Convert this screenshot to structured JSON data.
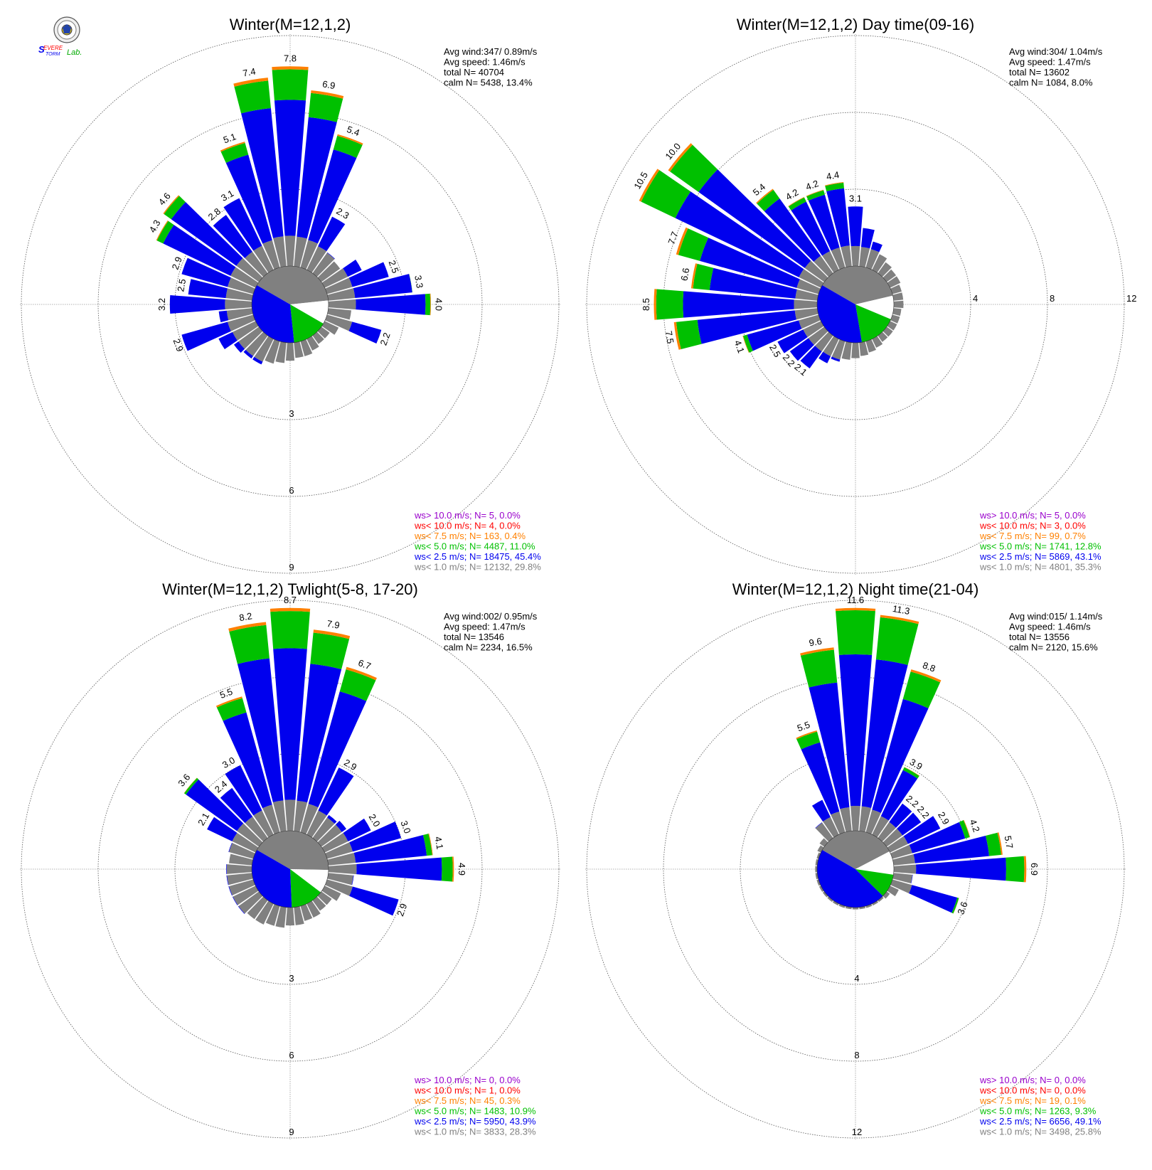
{
  "logo": {
    "text_top": "Severe",
    "text_bottom": "Storm",
    "text_lab": "Lab."
  },
  "colors": {
    "gray": "#808080",
    "blue": "#0000ee",
    "green": "#00c000",
    "orange": "#ff8000",
    "red": "#ff0000",
    "purple": "#9900cc",
    "grid": "#999999"
  },
  "chart_data": [
    {
      "type": "wind-rose",
      "title": "Winter(M=12,1,2)",
      "rings": [
        3,
        6,
        9
      ],
      "ring_labels": [
        "3",
        "6",
        "9"
      ],
      "stats": [
        "Avg wind:347/ 0.89m/s",
        "Avg speed: 1.46m/s",
        "total N=      40704",
        "calm N=   5438,  13.4%"
      ],
      "calm_pct": 13.4,
      "sector_shares": {
        "gray": 0.4,
        "blue": 0.35,
        "green": 0.15
      },
      "spokes": [
        {
          "deg": 0,
          "total": 7.8,
          "label": "7.8"
        },
        {
          "deg": 10,
          "total": 6.9,
          "label": "6.9"
        },
        {
          "deg": 20,
          "total": 5.4,
          "label": "5.4"
        },
        {
          "deg": 30,
          "total": 2.3,
          "label": "2.3"
        },
        {
          "deg": 40,
          "total": 1.0
        },
        {
          "deg": 50,
          "total": 0.9
        },
        {
          "deg": 60,
          "total": 1.6
        },
        {
          "deg": 70,
          "total": 2.5,
          "label": "2.5"
        },
        {
          "deg": 80,
          "total": 3.3,
          "label": "3.3"
        },
        {
          "deg": 90,
          "total": 4.0,
          "label": "4.0"
        },
        {
          "deg": 100,
          "total": 0.9
        },
        {
          "deg": 110,
          "total": 2.2,
          "label": "2.2"
        },
        {
          "deg": 120,
          "total": 0.6
        },
        {
          "deg": 130,
          "total": 0.4
        },
        {
          "deg": 140,
          "total": 0.4
        },
        {
          "deg": 150,
          "total": 0.5
        },
        {
          "deg": 160,
          "total": 0.6
        },
        {
          "deg": 170,
          "total": 0.6
        },
        {
          "deg": 180,
          "total": 0.7
        },
        {
          "deg": 190,
          "total": 0.8
        },
        {
          "deg": 200,
          "total": 0.9
        },
        {
          "deg": 210,
          "total": 1.1
        },
        {
          "deg": 220,
          "total": 1.1
        },
        {
          "deg": 230,
          "total": 1.2
        },
        {
          "deg": 240,
          "total": 1.6
        },
        {
          "deg": 250,
          "total": 2.9,
          "label": "2.9"
        },
        {
          "deg": 260,
          "total": 1.3
        },
        {
          "deg": 270,
          "total": 3.2,
          "label": "3.2"
        },
        {
          "deg": 280,
          "total": 2.5,
          "label": "2.5"
        },
        {
          "deg": 290,
          "total": 2.9,
          "label": "2.9"
        },
        {
          "deg": 300,
          "total": 4.3,
          "label": "4.3"
        },
        {
          "deg": 310,
          "total": 4.6,
          "label": "4.6"
        },
        {
          "deg": 320,
          "total": 2.8,
          "label": "2.8"
        },
        {
          "deg": 330,
          "total": 3.1,
          "label": "3.1"
        },
        {
          "deg": 340,
          "total": 5.1,
          "label": "5.1"
        },
        {
          "deg": 350,
          "total": 7.4,
          "label": "7.4"
        }
      ],
      "legend": [
        {
          "label": "ws> 10.0 m/s; N=     5,  0.0%",
          "color": "#9900cc"
        },
        {
          "label": "ws< 10.0 m/s; N=     4,  0.0%",
          "color": "#ff0000"
        },
        {
          "label": "ws<  7.5 m/s; N=   163,  0.4%",
          "color": "#ff8000"
        },
        {
          "label": "ws<  5.0 m/s; N=  4487, 11.0%",
          "color": "#00c000"
        },
        {
          "label": "ws<  2.5 m/s; N= 18475, 45.4%",
          "color": "#0000ee"
        },
        {
          "label": "ws<  1.0 m/s; N= 12132, 29.8%",
          "color": "#808080"
        }
      ]
    },
    {
      "type": "wind-rose",
      "title": "Winter(M=12,1,2) Day time(09-16)",
      "rings": [
        4,
        8,
        12
      ],
      "ring_labels": [
        "4",
        "8",
        "12"
      ],
      "stats": [
        "Avg wind:304/ 1.04m/s",
        "Avg speed: 1.47m/s",
        "total N=      13602",
        "calm N=   1084,   8.0%"
      ],
      "calm_pct": 8.0,
      "sector_shares": {
        "gray": 0.38,
        "blue": 0.36,
        "green": 0.16
      },
      "spokes": [
        {
          "deg": 0,
          "total": 3.1,
          "label": "3.1"
        },
        {
          "deg": 10,
          "total": 2.0
        },
        {
          "deg": 20,
          "total": 1.4
        },
        {
          "deg": 30,
          "total": 0.9
        },
        {
          "deg": 40,
          "total": 0.7
        },
        {
          "deg": 50,
          "total": 0.6
        },
        {
          "deg": 60,
          "total": 0.6
        },
        {
          "deg": 70,
          "total": 0.5
        },
        {
          "deg": 80,
          "total": 0.5
        },
        {
          "deg": 90,
          "total": 0.5
        },
        {
          "deg": 100,
          "total": 0.4
        },
        {
          "deg": 110,
          "total": 0.4
        },
        {
          "deg": 120,
          "total": 0.4
        },
        {
          "deg": 130,
          "total": 0.4
        },
        {
          "deg": 140,
          "total": 0.4
        },
        {
          "deg": 150,
          "total": 0.5
        },
        {
          "deg": 160,
          "total": 0.6
        },
        {
          "deg": 170,
          "total": 0.7
        },
        {
          "deg": 180,
          "total": 0.8
        },
        {
          "deg": 190,
          "total": 0.9
        },
        {
          "deg": 200,
          "total": 1.1
        },
        {
          "deg": 210,
          "total": 1.4
        },
        {
          "deg": 220,
          "total": 2.1,
          "label": "2.1"
        },
        {
          "deg": 230,
          "total": 2.2,
          "label": "2.2"
        },
        {
          "deg": 240,
          "total": 2.5,
          "label": "2.5"
        },
        {
          "deg": 250,
          "total": 4.1,
          "label": "4.1"
        },
        {
          "deg": 260,
          "total": 7.5,
          "label": "7.5"
        },
        {
          "deg": 270,
          "total": 8.5,
          "label": "8.5"
        },
        {
          "deg": 280,
          "total": 6.6,
          "label": "6.6"
        },
        {
          "deg": 290,
          "total": 7.7,
          "label": "7.7"
        },
        {
          "deg": 300,
          "total": 10.5,
          "label": "10.5"
        },
        {
          "deg": 310,
          "total": 10.0,
          "label": "10.0"
        },
        {
          "deg": 320,
          "total": 5.4,
          "label": "5.4"
        },
        {
          "deg": 330,
          "total": 4.2,
          "label": "4.2"
        },
        {
          "deg": 340,
          "total": 4.2,
          "label": "4.2"
        },
        {
          "deg": 350,
          "total": 4.4,
          "label": "4.4"
        }
      ],
      "legend": [
        {
          "label": "ws> 10.0 m/s; N=     5,  0.0%",
          "color": "#9900cc"
        },
        {
          "label": "ws< 10.0 m/s; N=     3,  0.0%",
          "color": "#ff0000"
        },
        {
          "label": "ws<  7.5 m/s; N=    99,  0.7%",
          "color": "#ff8000"
        },
        {
          "label": "ws<  5.0 m/s; N=  1741, 12.8%",
          "color": "#00c000"
        },
        {
          "label": "ws<  2.5 m/s; N=  5869, 43.1%",
          "color": "#0000ee"
        },
        {
          "label": "ws<  1.0 m/s; N=  4801, 35.3%",
          "color": "#808080"
        }
      ]
    },
    {
      "type": "wind-rose",
      "title": "Winter(M=12,1,2) Twlight(5-8, 17-20)",
      "rings": [
        3,
        6,
        9
      ],
      "ring_labels": [
        "3",
        "6",
        "9"
      ],
      "stats": [
        "Avg wind:002/ 0.95m/s",
        "Avg speed: 1.47m/s",
        "total N=      13546",
        "calm N=   2234,  16.5%"
      ],
      "calm_pct": 16.5,
      "sector_shares": {
        "gray": 0.42,
        "blue": 0.35,
        "green": 0.14
      },
      "spokes": [
        {
          "deg": 0,
          "total": 8.7,
          "label": "8.7"
        },
        {
          "deg": 10,
          "total": 7.9,
          "label": "7.9"
        },
        {
          "deg": 20,
          "total": 6.7,
          "label": "6.7"
        },
        {
          "deg": 30,
          "total": 2.9,
          "label": "2.9"
        },
        {
          "deg": 40,
          "total": 1.1
        },
        {
          "deg": 50,
          "total": 1.2
        },
        {
          "deg": 60,
          "total": 2.0,
          "label": "2.0"
        },
        {
          "deg": 70,
          "total": 3.0,
          "label": "3.0"
        },
        {
          "deg": 80,
          "total": 4.1,
          "label": "4.1"
        },
        {
          "deg": 90,
          "total": 4.9,
          "label": "4.9"
        },
        {
          "deg": 100,
          "total": 1.0
        },
        {
          "deg": 110,
          "total": 2.9,
          "label": "2.9"
        },
        {
          "deg": 120,
          "total": 0.7
        },
        {
          "deg": 130,
          "total": 0.5
        },
        {
          "deg": 140,
          "total": 0.5
        },
        {
          "deg": 150,
          "total": 0.6
        },
        {
          "deg": 160,
          "total": 0.6
        },
        {
          "deg": 170,
          "total": 0.7
        },
        {
          "deg": 180,
          "total": 0.7
        },
        {
          "deg": 190,
          "total": 0.8
        },
        {
          "deg": 200,
          "total": 0.8
        },
        {
          "deg": 210,
          "total": 0.9
        },
        {
          "deg": 220,
          "total": 0.9
        },
        {
          "deg": 230,
          "total": 1.0
        },
        {
          "deg": 240,
          "total": 1.0
        },
        {
          "deg": 250,
          "total": 1.0
        },
        {
          "deg": 260,
          "total": 1.0
        },
        {
          "deg": 270,
          "total": 1.0
        },
        {
          "deg": 280,
          "total": 0.9
        },
        {
          "deg": 290,
          "total": 1.0
        },
        {
          "deg": 300,
          "total": 2.1,
          "label": "2.1"
        },
        {
          "deg": 310,
          "total": 3.6,
          "label": "3.6"
        },
        {
          "deg": 320,
          "total": 2.4,
          "label": "2.4"
        },
        {
          "deg": 330,
          "total": 3.0,
          "label": "3.0"
        },
        {
          "deg": 340,
          "total": 5.5,
          "label": "5.5"
        },
        {
          "deg": 350,
          "total": 8.2,
          "label": "8.2"
        }
      ],
      "legend": [
        {
          "label": "ws> 10.0 m/s; N=     0,  0.0%",
          "color": "#9900cc"
        },
        {
          "label": "ws< 10.0 m/s; N=     1,  0.0%",
          "color": "#ff0000"
        },
        {
          "label": "ws<  7.5 m/s; N=    45,  0.3%",
          "color": "#ff8000"
        },
        {
          "label": "ws<  5.0 m/s; N=  1483, 10.9%",
          "color": "#00c000"
        },
        {
          "label": "ws<  2.5 m/s; N=  5950, 43.9%",
          "color": "#0000ee"
        },
        {
          "label": "ws<  1.0 m/s; N=  3833, 28.3%",
          "color": "#808080"
        }
      ]
    },
    {
      "type": "wind-rose",
      "title": "Winter(M=12,1,2) Night time(21-04)",
      "rings": [
        4,
        8,
        12
      ],
      "ring_labels": [
        "4",
        "8",
        "12"
      ],
      "stats": [
        "Avg wind:015/ 1.14m/s",
        "Avg speed: 1.46m/s",
        "total N=      13556",
        "calm N=   2120,  15.6%"
      ],
      "calm_pct": 15.6,
      "sector_shares": {
        "gray": 0.34,
        "blue": 0.45,
        "green": 0.1
      },
      "spokes": [
        {
          "deg": 0,
          "total": 11.6,
          "label": "11.6"
        },
        {
          "deg": 10,
          "total": 11.3,
          "label": "11.3"
        },
        {
          "deg": 20,
          "total": 8.8,
          "label": "8.8"
        },
        {
          "deg": 30,
          "total": 3.9,
          "label": "3.9"
        },
        {
          "deg": 40,
          "total": 2.2,
          "label": "2.2"
        },
        {
          "deg": 50,
          "total": 2.2,
          "label": "2.2"
        },
        {
          "deg": 60,
          "total": 2.9,
          "label": "2.9"
        },
        {
          "deg": 70,
          "total": 4.2,
          "label": "4.2"
        },
        {
          "deg": 80,
          "total": 5.7,
          "label": "5.7"
        },
        {
          "deg": 90,
          "total": 6.9,
          "label": "6.9"
        },
        {
          "deg": 100,
          "total": 1.0
        },
        {
          "deg": 110,
          "total": 3.6,
          "label": "3.6"
        },
        {
          "deg": 120,
          "total": 0.5
        },
        {
          "deg": 130,
          "total": 0.2
        },
        {
          "deg": 140,
          "total": 0.1
        },
        {
          "deg": 150,
          "total": 0.1
        },
        {
          "deg": 160,
          "total": 0.1
        },
        {
          "deg": 170,
          "total": 0.1
        },
        {
          "deg": 180,
          "total": 0.1
        },
        {
          "deg": 190,
          "total": 0.1
        },
        {
          "deg": 200,
          "total": 0.1
        },
        {
          "deg": 210,
          "total": 0.1
        },
        {
          "deg": 220,
          "total": 0.1
        },
        {
          "deg": 230,
          "total": 0.1
        },
        {
          "deg": 240,
          "total": 0.1
        },
        {
          "deg": 250,
          "total": 0.1
        },
        {
          "deg": 260,
          "total": 0.1
        },
        {
          "deg": 270,
          "total": 0.1
        },
        {
          "deg": 280,
          "total": 0.1
        },
        {
          "deg": 290,
          "total": 0.1
        },
        {
          "deg": 300,
          "total": 0.2
        },
        {
          "deg": 310,
          "total": 0.3
        },
        {
          "deg": 320,
          "total": 1.0
        },
        {
          "deg": 330,
          "total": 2.0
        },
        {
          "deg": 340,
          "total": 5.5,
          "label": "5.5"
        },
        {
          "deg": 350,
          "total": 9.6,
          "label": "9.6"
        }
      ],
      "legend": [
        {
          "label": "ws> 10.0 m/s; N=     0,  0.0%",
          "color": "#9900cc"
        },
        {
          "label": "ws< 10.0 m/s; N=     0,  0.0%",
          "color": "#ff0000"
        },
        {
          "label": "ws<  7.5 m/s; N=    19,  0.1%",
          "color": "#ff8000"
        },
        {
          "label": "ws<  5.0 m/s; N=  1263,  9.3%",
          "color": "#00c000"
        },
        {
          "label": "ws<  2.5 m/s; N=  6656, 49.1%",
          "color": "#0000ee"
        },
        {
          "label": "ws<  1.0 m/s; N=  3498, 25.8%",
          "color": "#808080"
        }
      ]
    }
  ]
}
